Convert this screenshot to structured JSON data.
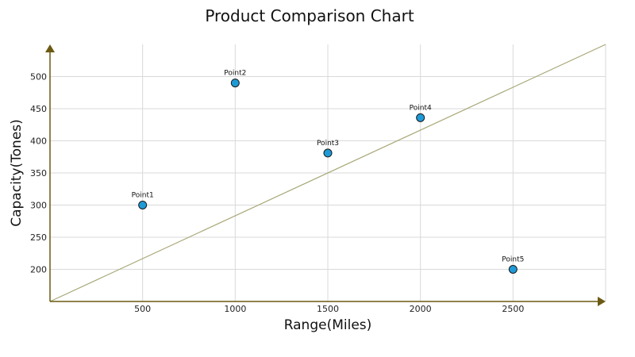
{
  "chart_data": {
    "type": "scatter",
    "title": "Product Comparison Chart",
    "xlabel": "Range(Miles)",
    "ylabel": "Capacity(Tones)",
    "xlim": [
      0,
      3000
    ],
    "ylim": [
      150,
      550
    ],
    "x_ticks": [
      500,
      1000,
      1500,
      2000,
      2500
    ],
    "y_ticks": [
      200,
      250,
      300,
      350,
      400,
      450,
      500
    ],
    "grid": true,
    "points": [
      {
        "label": "Point1",
        "x": 500,
        "y": 300
      },
      {
        "label": "Point2",
        "x": 1000,
        "y": 490
      },
      {
        "label": "Point3",
        "x": 1500,
        "y": 381
      },
      {
        "label": "Point4",
        "x": 2000,
        "y": 436
      },
      {
        "label": "Point5",
        "x": 2500,
        "y": 200
      }
    ],
    "trendline": {
      "x": [
        0,
        3000
      ],
      "y": [
        150,
        550
      ]
    },
    "colors": {
      "marker_fill": "#1e9ad6",
      "marker_stroke": "#1a1a1a",
      "trendline": "#a8a878",
      "axis": "#6b5a12",
      "grid": "#d9d9d9"
    }
  }
}
